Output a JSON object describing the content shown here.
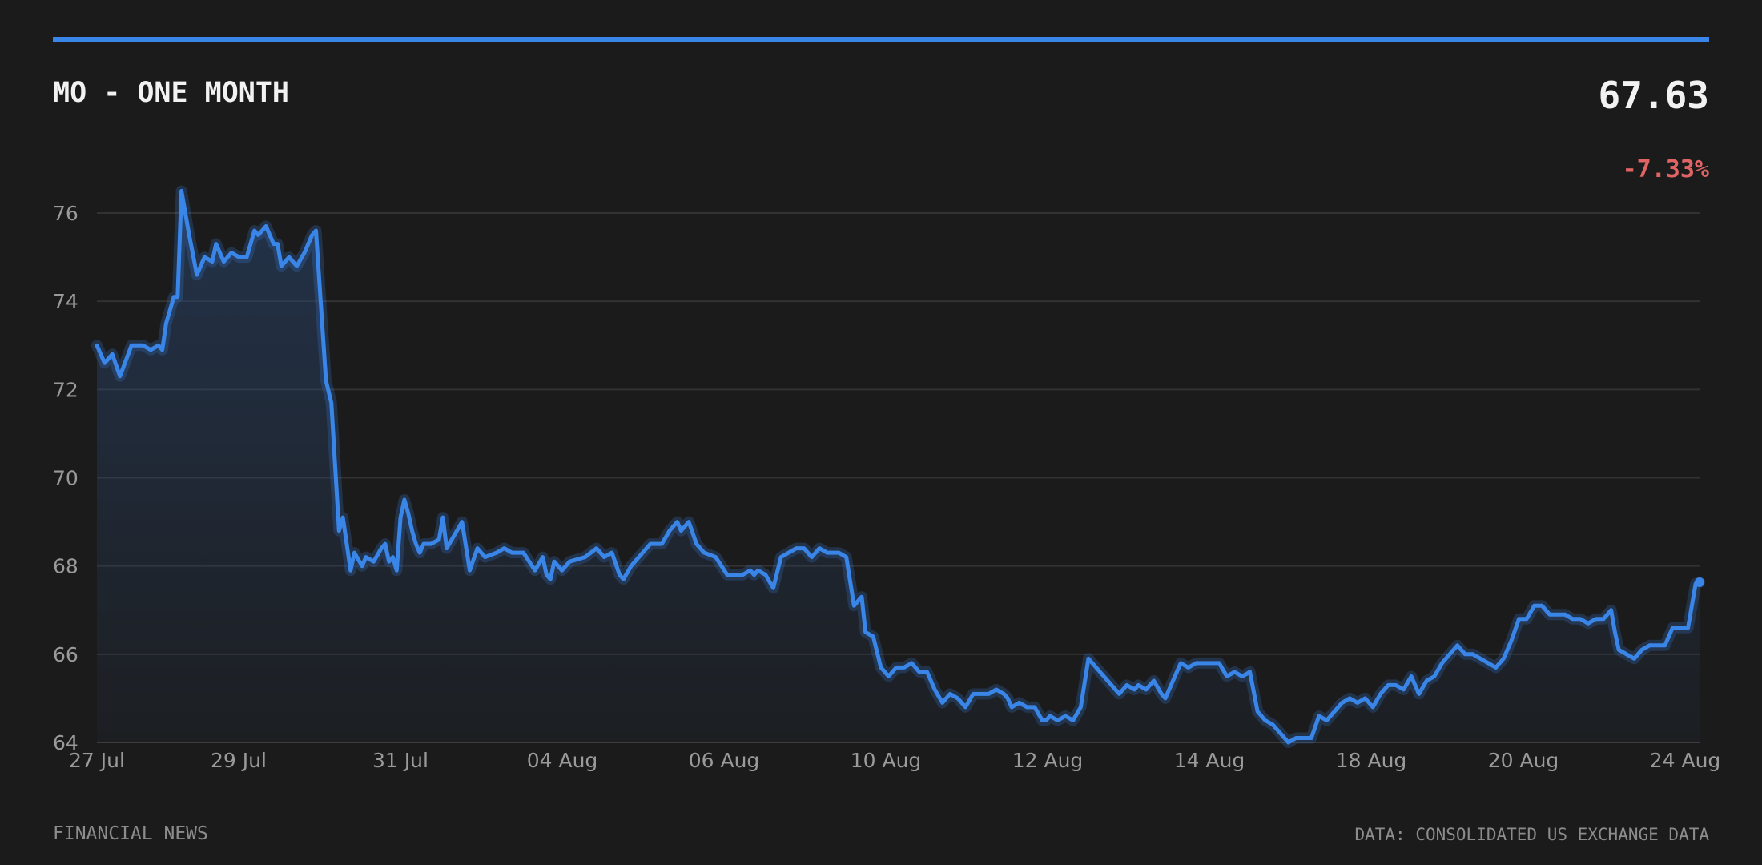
{
  "header": {
    "title": "MO - ONE MONTH",
    "price": "67.63",
    "change": "-7.33%"
  },
  "footer": {
    "source_left": "FINANCIAL NEWS",
    "source_right": "DATA: CONSOLIDATED US EXCHANGE DATA"
  },
  "colors": {
    "background": "#1b1b1b",
    "accent": "#3a86e8",
    "negative": "#e06464",
    "grid": "#333333",
    "axis_text": "#9a9a9a"
  },
  "chart_data": {
    "type": "area",
    "title": "MO - ONE MONTH",
    "xlabel": "",
    "ylabel": "",
    "ylim": [
      64,
      76.5
    ],
    "grid": true,
    "y_ticks": [
      64,
      66,
      68,
      70,
      72,
      74,
      76
    ],
    "x_tick_labels": [
      "27 Jul",
      "29 Jul",
      "31 Jul",
      "04 Aug",
      "06 Aug",
      "10 Aug",
      "12 Aug",
      "14 Aug",
      "18 Aug",
      "20 Aug",
      "24 Aug"
    ],
    "series": [
      {
        "points": [
          [
            0,
            73.0
          ],
          [
            0.1,
            72.6
          ],
          [
            0.2,
            72.8
          ],
          [
            0.3,
            72.3
          ],
          [
            0.45,
            73.0
          ],
          [
            0.6,
            73.0
          ],
          [
            0.7,
            72.9
          ],
          [
            0.8,
            73.0
          ],
          [
            0.85,
            72.9
          ],
          [
            0.9,
            73.5
          ],
          [
            1.0,
            74.1
          ],
          [
            1.05,
            74.1
          ],
          [
            1.1,
            76.5
          ],
          [
            1.2,
            75.5
          ],
          [
            1.3,
            74.6
          ],
          [
            1.4,
            75.0
          ],
          [
            1.5,
            74.9
          ],
          [
            1.55,
            75.3
          ],
          [
            1.65,
            74.9
          ],
          [
            1.75,
            75.1
          ],
          [
            1.85,
            75.0
          ],
          [
            1.95,
            75.0
          ],
          [
            2.05,
            75.6
          ],
          [
            2.1,
            75.5
          ],
          [
            2.2,
            75.7
          ],
          [
            2.3,
            75.3
          ],
          [
            2.35,
            75.3
          ],
          [
            2.4,
            74.8
          ],
          [
            2.5,
            75.0
          ],
          [
            2.6,
            74.8
          ],
          [
            2.7,
            75.1
          ],
          [
            2.8,
            75.5
          ],
          [
            2.85,
            75.6
          ],
          [
            2.98,
            72.2
          ],
          [
            3.05,
            71.7
          ],
          [
            3.15,
            68.8
          ],
          [
            3.2,
            69.1
          ],
          [
            3.3,
            67.9
          ],
          [
            3.35,
            68.3
          ],
          [
            3.45,
            68.0
          ],
          [
            3.5,
            68.2
          ],
          [
            3.6,
            68.1
          ],
          [
            3.7,
            68.4
          ],
          [
            3.75,
            68.5
          ],
          [
            3.8,
            68.1
          ],
          [
            3.85,
            68.2
          ],
          [
            3.9,
            67.9
          ],
          [
            3.95,
            69.1
          ],
          [
            4.0,
            69.5
          ],
          [
            4.05,
            69.2
          ],
          [
            4.1,
            68.8
          ],
          [
            4.15,
            68.5
          ],
          [
            4.2,
            68.3
          ],
          [
            4.25,
            68.5
          ],
          [
            4.35,
            68.5
          ],
          [
            4.45,
            68.6
          ],
          [
            4.5,
            69.1
          ],
          [
            4.55,
            68.4
          ],
          [
            4.65,
            68.7
          ],
          [
            4.75,
            69.0
          ],
          [
            4.85,
            67.9
          ],
          [
            4.95,
            68.4
          ],
          [
            5.05,
            68.2
          ],
          [
            5.2,
            68.3
          ],
          [
            5.3,
            68.4
          ],
          [
            5.4,
            68.3
          ],
          [
            5.55,
            68.3
          ],
          [
            5.7,
            67.9
          ],
          [
            5.8,
            68.2
          ],
          [
            5.85,
            67.8
          ],
          [
            5.9,
            67.7
          ],
          [
            5.95,
            68.1
          ],
          [
            6.05,
            67.9
          ],
          [
            6.15,
            68.1
          ],
          [
            6.35,
            68.2
          ],
          [
            6.5,
            68.4
          ],
          [
            6.6,
            68.2
          ],
          [
            6.7,
            68.3
          ],
          [
            6.8,
            67.8
          ],
          [
            6.85,
            67.7
          ],
          [
            6.95,
            68.0
          ],
          [
            7.1,
            68.3
          ],
          [
            7.2,
            68.5
          ],
          [
            7.35,
            68.5
          ],
          [
            7.45,
            68.8
          ],
          [
            7.55,
            69.0
          ],
          [
            7.6,
            68.8
          ],
          [
            7.7,
            69.0
          ],
          [
            7.8,
            68.5
          ],
          [
            7.9,
            68.3
          ],
          [
            8.05,
            68.2
          ],
          [
            8.2,
            67.8
          ],
          [
            8.4,
            67.8
          ],
          [
            8.5,
            67.9
          ],
          [
            8.55,
            67.8
          ],
          [
            8.6,
            67.9
          ],
          [
            8.7,
            67.8
          ],
          [
            8.8,
            67.5
          ],
          [
            8.9,
            68.2
          ],
          [
            9.0,
            68.3
          ],
          [
            9.1,
            68.4
          ],
          [
            9.2,
            68.4
          ],
          [
            9.3,
            68.2
          ],
          [
            9.4,
            68.4
          ],
          [
            9.5,
            68.3
          ],
          [
            9.65,
            68.3
          ],
          [
            9.75,
            68.2
          ],
          [
            9.85,
            67.1
          ],
          [
            9.95,
            67.3
          ],
          [
            10.0,
            66.5
          ],
          [
            10.1,
            66.4
          ],
          [
            10.2,
            65.7
          ],
          [
            10.3,
            65.5
          ],
          [
            10.4,
            65.7
          ],
          [
            10.5,
            65.7
          ],
          [
            10.6,
            65.8
          ],
          [
            10.7,
            65.6
          ],
          [
            10.8,
            65.6
          ],
          [
            10.9,
            65.2
          ],
          [
            11.0,
            64.9
          ],
          [
            11.1,
            65.1
          ],
          [
            11.2,
            65.0
          ],
          [
            11.3,
            64.8
          ],
          [
            11.4,
            65.1
          ],
          [
            11.5,
            65.1
          ],
          [
            11.6,
            65.1
          ],
          [
            11.7,
            65.2
          ],
          [
            11.8,
            65.1
          ],
          [
            11.85,
            65.0
          ],
          [
            11.9,
            64.8
          ],
          [
            12.0,
            64.9
          ],
          [
            12.1,
            64.8
          ],
          [
            12.2,
            64.8
          ],
          [
            12.3,
            64.5
          ],
          [
            12.35,
            64.5
          ],
          [
            12.4,
            64.6
          ],
          [
            12.5,
            64.5
          ],
          [
            12.6,
            64.6
          ],
          [
            12.7,
            64.5
          ],
          [
            12.8,
            64.8
          ],
          [
            12.9,
            65.9
          ],
          [
            13.0,
            65.7
          ],
          [
            13.1,
            65.5
          ],
          [
            13.2,
            65.3
          ],
          [
            13.3,
            65.1
          ],
          [
            13.4,
            65.3
          ],
          [
            13.5,
            65.2
          ],
          [
            13.55,
            65.3
          ],
          [
            13.65,
            65.2
          ],
          [
            13.75,
            65.4
          ],
          [
            13.85,
            65.1
          ],
          [
            13.9,
            65.0
          ],
          [
            14.0,
            65.4
          ],
          [
            14.1,
            65.8
          ],
          [
            14.2,
            65.7
          ],
          [
            14.3,
            65.8
          ],
          [
            14.4,
            65.8
          ],
          [
            14.6,
            65.8
          ],
          [
            14.7,
            65.5
          ],
          [
            14.8,
            65.6
          ],
          [
            14.9,
            65.5
          ],
          [
            15.0,
            65.6
          ],
          [
            15.1,
            64.7
          ],
          [
            15.2,
            64.5
          ],
          [
            15.3,
            64.4
          ],
          [
            15.4,
            64.2
          ],
          [
            15.5,
            64.0
          ],
          [
            15.6,
            64.1
          ],
          [
            15.8,
            64.1
          ],
          [
            15.9,
            64.6
          ],
          [
            16.0,
            64.5
          ],
          [
            16.1,
            64.7
          ],
          [
            16.2,
            64.9
          ],
          [
            16.3,
            65.0
          ],
          [
            16.4,
            64.9
          ],
          [
            16.5,
            65.0
          ],
          [
            16.6,
            64.8
          ],
          [
            16.7,
            65.1
          ],
          [
            16.8,
            65.3
          ],
          [
            16.9,
            65.3
          ],
          [
            17.0,
            65.2
          ],
          [
            17.1,
            65.5
          ],
          [
            17.2,
            65.1
          ],
          [
            17.3,
            65.4
          ],
          [
            17.4,
            65.5
          ],
          [
            17.5,
            65.8
          ],
          [
            17.6,
            66.0
          ],
          [
            17.7,
            66.2
          ],
          [
            17.8,
            66.0
          ],
          [
            17.9,
            66.0
          ],
          [
            18.0,
            65.9
          ],
          [
            18.1,
            65.8
          ],
          [
            18.2,
            65.7
          ],
          [
            18.3,
            65.9
          ],
          [
            18.4,
            66.3
          ],
          [
            18.5,
            66.8
          ],
          [
            18.6,
            66.8
          ],
          [
            18.7,
            67.1
          ],
          [
            18.8,
            67.1
          ],
          [
            18.9,
            66.9
          ],
          [
            19.0,
            66.9
          ],
          [
            19.1,
            66.9
          ],
          [
            19.2,
            66.8
          ],
          [
            19.3,
            66.8
          ],
          [
            19.4,
            66.7
          ],
          [
            19.5,
            66.8
          ],
          [
            19.6,
            66.8
          ],
          [
            19.7,
            67.0
          ],
          [
            19.75,
            66.5
          ],
          [
            19.8,
            66.1
          ],
          [
            19.9,
            66.0
          ],
          [
            20.0,
            65.9
          ],
          [
            20.1,
            66.1
          ],
          [
            20.2,
            66.2
          ],
          [
            20.3,
            66.2
          ],
          [
            20.4,
            66.2
          ],
          [
            20.5,
            66.6
          ],
          [
            20.6,
            66.6
          ],
          [
            20.7,
            66.6
          ],
          [
            20.8,
            67.6
          ],
          [
            20.85,
            67.63
          ]
        ]
      }
    ]
  }
}
